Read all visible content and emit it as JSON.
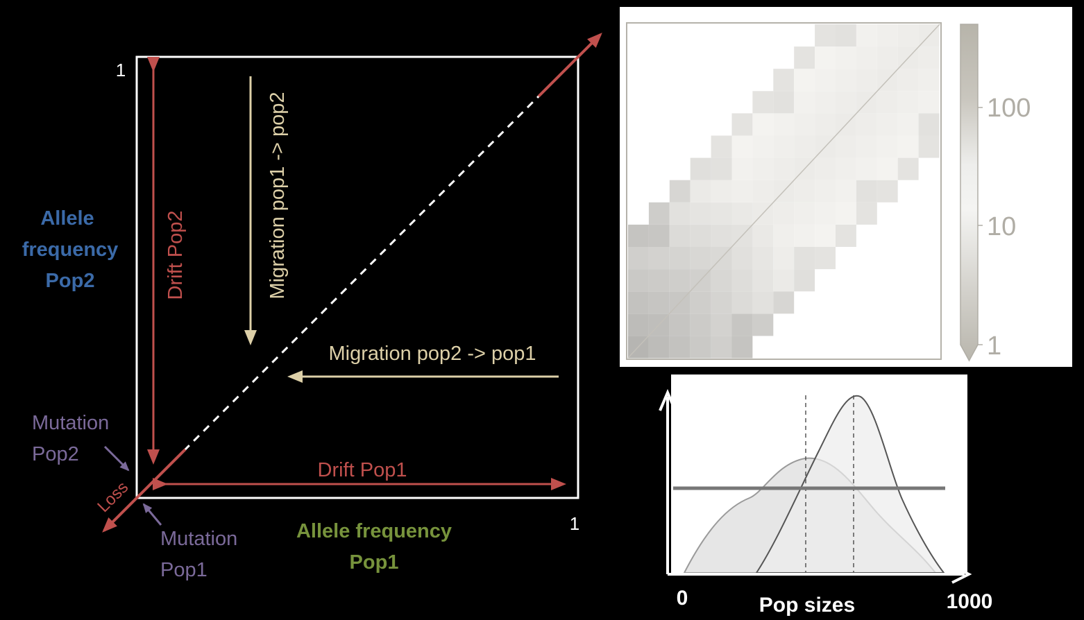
{
  "colors": {
    "background": "#000000",
    "frame": "#ffffff",
    "drift": "#c0504d",
    "migration": "#ddd0a8",
    "mutation": "#7b6a9a",
    "axis_y_label": "#3b6aa8",
    "axis_x_label": "#77933c",
    "text_white": "#ffffff"
  },
  "diagram": {
    "tick_one_y": "1",
    "tick_one_x": "1",
    "axis_y_label": [
      "Allele",
      "frequency",
      "Pop2"
    ],
    "axis_x_label": [
      "Allele frequency",
      "Pop1"
    ],
    "drift_pop2": "Drift Pop2",
    "drift_pop1": "Drift Pop1",
    "migration_1_to_2": "Migration pop1 -> pop2",
    "migration_2_to_1": "Migration pop2 -> pop1",
    "mutation_pop2": [
      "Mutation",
      "Pop2"
    ],
    "mutation_pop1": [
      "Mutation",
      "Pop1"
    ],
    "loss": "Loss"
  },
  "heatmap_panel": {
    "colorbar_ticks": [
      "100",
      "10",
      "1"
    ]
  },
  "density_panel": {
    "x_start": "0",
    "x_end": "1000",
    "x_label": "Pop sizes"
  }
}
